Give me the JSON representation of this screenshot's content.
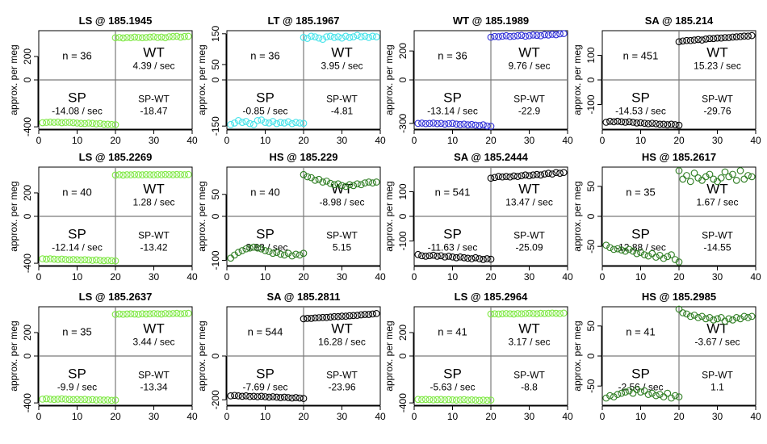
{
  "chart_data": [
    {
      "type": "scatter",
      "title": "LS @ 185.1945",
      "ylabel": "approx. per meg",
      "n_label": "n = 36",
      "color": "#7ee843",
      "xlim": [
        0,
        40
      ],
      "ylim": [
        -420,
        420
      ],
      "yticks": [
        -400,
        0,
        200
      ],
      "xticks": [
        0,
        10,
        20,
        30,
        40
      ],
      "sp": {
        "label": "SP",
        "rate": "-14.08 / sec",
        "values": [
          -365,
          -362,
          -360,
          -362,
          -360,
          -365,
          -362,
          -362,
          -365,
          -368,
          -370,
          -372,
          -368,
          -370,
          -375,
          -372,
          -378,
          -378,
          -380,
          -382
        ],
        "x0": 1
      },
      "wt": {
        "label": "WT",
        "rate": "4.39 / sec",
        "values": [
          360,
          362,
          358,
          362,
          360,
          365,
          362,
          360,
          362,
          365,
          368,
          362,
          365,
          360,
          368,
          370,
          372,
          365,
          370,
          372
        ],
        "x0": 20
      },
      "spwt": {
        "label": "SP-WT",
        "rate": "-18.47"
      }
    },
    {
      "type": "scatter",
      "title": "LT @ 185.1967",
      "ylabel": "approx. per meg",
      "n_label": "n = 36",
      "color": "#45e3ea",
      "xlim": [
        0,
        40
      ],
      "ylim": [
        -160,
        160
      ],
      "yticks": [
        -150,
        0,
        50,
        150
      ],
      "xticks": [
        0,
        10,
        20,
        30,
        40
      ],
      "sp": {
        "label": "SP",
        "rate": "-0.85 / sec",
        "values": [
          -145,
          -140,
          -132,
          -138,
          -135,
          -142,
          -145,
          -132,
          -130,
          -138,
          -140,
          -135,
          -142,
          -138,
          -140,
          -136,
          -142,
          -138,
          -140,
          -141
        ],
        "x0": 1
      },
      "wt": {
        "label": "WT",
        "rate": "3.95 / sec",
        "values": [
          138,
          135,
          142,
          140,
          136,
          132,
          140,
          142,
          138,
          140,
          136,
          142,
          138,
          140,
          145,
          140,
          142,
          138,
          142,
          140
        ],
        "x0": 20
      },
      "spwt": {
        "label": "SP-WT",
        "rate": "-4.81"
      }
    },
    {
      "type": "scatter",
      "title": "WT @ 185.1989",
      "ylabel": "approx. per meg",
      "n_label": "n = 36",
      "color": "#2d2dd6",
      "xlim": [
        0,
        40
      ],
      "ylim": [
        -340,
        340
      ],
      "yticks": [
        -300,
        0,
        200
      ],
      "xticks": [
        0,
        10,
        20,
        30,
        40
      ],
      "sp": {
        "label": "SP",
        "rate": "-13.14 / sec",
        "values": [
          -300,
          -298,
          -302,
          -300,
          -298,
          -302,
          -300,
          -305,
          -302,
          -300,
          -305,
          -308,
          -305,
          -310,
          -308,
          -312,
          -315,
          -310,
          -318,
          -320
        ],
        "x0": 1
      },
      "wt": {
        "label": "WT",
        "rate": "9.76 / sec",
        "values": [
          295,
          300,
          298,
          302,
          305,
          300,
          302,
          305,
          308,
          302,
          305,
          310,
          308,
          305,
          312,
          310,
          315,
          312,
          318,
          320
        ],
        "x0": 20
      },
      "spwt": {
        "label": "SP-WT",
        "rate": "-22.9"
      }
    },
    {
      "type": "scatter",
      "title": "SA @ 185.214",
      "ylabel": "approx. per meg",
      "n_label": "n = 451",
      "color": "#000000",
      "xlim": [
        0,
        40
      ],
      "ylim": [
        -200,
        200
      ],
      "yticks": [
        -100,
        0,
        100
      ],
      "xticks": [
        0,
        10,
        20,
        30,
        40
      ],
      "sp": {
        "label": "SP",
        "rate": "-14.53 / sec",
        "values": [
          -172,
          -168,
          -170,
          -168,
          -170,
          -172,
          -170,
          -172,
          -175,
          -174,
          -176,
          -178,
          -176,
          -178,
          -180,
          -180,
          -182,
          -180,
          -182,
          -184
        ],
        "x0": 1
      },
      "wt": {
        "label": "WT",
        "rate": "15.23 / sec",
        "values": [
          155,
          158,
          160,
          160,
          162,
          164,
          162,
          166,
          168,
          168,
          170,
          170,
          172,
          172,
          174,
          175,
          176,
          178,
          178,
          180
        ],
        "x0": 20
      },
      "spwt": {
        "label": "SP-WT",
        "rate": "-29.76"
      }
    },
    {
      "type": "scatter",
      "title": "LS @ 185.2269",
      "ylabel": "approx. per meg",
      "n_label": "n = 40",
      "color": "#7ee843",
      "xlim": [
        0,
        40
      ],
      "ylim": [
        -420,
        420
      ],
      "yticks": [
        -400,
        0,
        200
      ],
      "xticks": [
        0,
        10,
        20,
        30,
        40
      ],
      "sp": {
        "label": "SP",
        "rate": "-12.14 / sec",
        "values": [
          -362,
          -365,
          -362,
          -365,
          -368,
          -365,
          -368,
          -370,
          -368,
          -370,
          -372,
          -370,
          -372,
          -375,
          -372,
          -375,
          -378,
          -375,
          -378,
          -380
        ],
        "x0": 1
      },
      "wt": {
        "label": "WT",
        "rate": "1.28 / sec",
        "values": [
          352,
          355,
          352,
          355,
          354,
          356,
          355,
          354,
          356,
          355,
          354,
          356,
          355,
          357,
          356,
          355,
          357,
          356,
          355,
          357
        ],
        "x0": 20
      },
      "spwt": {
        "label": "SP-WT",
        "rate": "-13.42"
      }
    },
    {
      "type": "scatter",
      "title": "HS @ 185.229",
      "ylabel": "approx. per meg",
      "n_label": "n = 40",
      "color": "#2e7d22",
      "xlim": [
        0,
        40
      ],
      "ylim": [
        -112,
        112
      ],
      "yticks": [
        -100,
        0,
        50
      ],
      "xticks": [
        0,
        10,
        20,
        30,
        40
      ],
      "sp": {
        "label": "SP",
        "rate": "-3.83 / sec",
        "values": [
          -95,
          -88,
          -82,
          -78,
          -74,
          -72,
          -70,
          -72,
          -74,
          -78,
          -80,
          -84,
          -82,
          -86,
          -88,
          -84,
          -90,
          -86,
          -88,
          -84
        ],
        "x0": 1
      },
      "wt": {
        "label": "WT",
        "rate": "-8.98 / sec",
        "values": [
          95,
          90,
          88,
          82,
          84,
          78,
          80,
          75,
          72,
          74,
          70,
          68,
          72,
          70,
          74,
          72,
          76,
          78,
          76,
          78
        ],
        "x0": 20
      },
      "spwt": {
        "label": "SP-WT",
        "rate": "5.15"
      }
    },
    {
      "type": "scatter",
      "title": "SA @ 185.2444",
      "ylabel": "approx. per meg",
      "n_label": "n = 541",
      "color": "#000000",
      "xlim": [
        0,
        40
      ],
      "ylim": [
        -200,
        200
      ],
      "yticks": [
        -100,
        0,
        100
      ],
      "xticks": [
        0,
        10,
        20,
        30,
        40
      ],
      "sp": {
        "label": "SP",
        "rate": "-11.63 / sec",
        "values": [
          -155,
          -160,
          -162,
          -160,
          -158,
          -162,
          -160,
          -165,
          -162,
          -165,
          -168,
          -165,
          -168,
          -170,
          -172,
          -168,
          -172,
          -175,
          -172,
          -174
        ],
        "x0": 1
      },
      "wt": {
        "label": "WT",
        "rate": "13.47 / sec",
        "values": [
          155,
          158,
          162,
          160,
          162,
          160,
          164,
          162,
          165,
          168,
          165,
          168,
          170,
          168,
          172,
          175,
          172,
          178,
          175,
          178
        ],
        "x0": 20
      },
      "spwt": {
        "label": "SP-WT",
        "rate": "-25.09"
      }
    },
    {
      "type": "scatter",
      "title": "HS @ 185.2617",
      "ylabel": "approx. per meg",
      "n_label": "n = 35",
      "color": "#2e7d22",
      "xlim": [
        0,
        40
      ],
      "ylim": [
        -82,
        82
      ],
      "yticks": [
        -50,
        0,
        50
      ],
      "xticks": [
        0,
        10,
        20,
        30,
        40
      ],
      "sp": {
        "label": "SP",
        "rate": "-12.88 / sec",
        "values": [
          -48,
          -52,
          -55,
          -54,
          -56,
          -58,
          -55,
          -58,
          -62,
          -60,
          -64,
          -66,
          -62,
          -68,
          -65,
          -70,
          -67,
          -64,
          -72,
          -76
        ],
        "x0": 1
      },
      "wt": {
        "label": "WT",
        "rate": "1.67 / sec",
        "values": [
          76,
          62,
          68,
          58,
          72,
          64,
          60,
          66,
          70,
          62,
          58,
          64,
          74,
          66,
          70,
          60,
          76,
          62,
          68,
          66
        ],
        "x0": 20
      },
      "spwt": {
        "label": "SP-WT",
        "rate": "-14.55"
      }
    },
    {
      "type": "scatter",
      "title": "LS @ 185.2637",
      "ylabel": "approx. per meg",
      "n_label": "n = 35",
      "color": "#7ee843",
      "xlim": [
        0,
        40
      ],
      "ylim": [
        -420,
        420
      ],
      "yticks": [
        -400,
        0,
        200
      ],
      "xticks": [
        0,
        10,
        20,
        30,
        40
      ],
      "sp": {
        "label": "SP",
        "rate": "-9.9 / sec",
        "values": [
          -368,
          -365,
          -368,
          -370,
          -368,
          -366,
          -368,
          -370,
          -372,
          -370,
          -372,
          -370,
          -374,
          -372,
          -375,
          -374,
          -376,
          -375,
          -378,
          -376
        ],
        "x0": 1
      },
      "wt": {
        "label": "WT",
        "rate": "3.44 / sec",
        "values": [
          355,
          358,
          356,
          358,
          360,
          358,
          356,
          360,
          358,
          360,
          362,
          360,
          358,
          362,
          360,
          362,
          364,
          360,
          362,
          364
        ],
        "x0": 20
      },
      "spwt": {
        "label": "SP-WT",
        "rate": "-13.34"
      }
    },
    {
      "type": "scatter",
      "title": "SA @ 185.2811",
      "ylabel": "approx. per meg",
      "n_label": "n = 544",
      "color": "#000000",
      "xlim": [
        0,
        40
      ],
      "ylim": [
        -225,
        225
      ],
      "yticks": [
        -200,
        0
      ],
      "xticks": [
        0,
        10,
        20,
        30,
        40
      ],
      "sp": {
        "label": "SP",
        "rate": "-7.69 / sec",
        "values": [
          -182,
          -180,
          -182,
          -184,
          -182,
          -185,
          -184,
          -186,
          -184,
          -186,
          -188,
          -186,
          -188,
          -190,
          -188,
          -190,
          -192,
          -190,
          -192,
          -194
        ],
        "x0": 1
      },
      "wt": {
        "label": "WT",
        "rate": "16.28 / sec",
        "values": [
          170,
          172,
          172,
          174,
          175,
          176,
          176,
          178,
          180,
          180,
          182,
          182,
          184,
          185,
          186,
          188,
          190,
          190,
          192,
          194
        ],
        "x0": 20
      },
      "spwt": {
        "label": "SP-WT",
        "rate": "-23.96"
      }
    },
    {
      "type": "scatter",
      "title": "LS @ 185.2964",
      "ylabel": "approx. per meg",
      "n_label": "n = 41",
      "color": "#7ee843",
      "xlim": [
        0,
        40
      ],
      "ylim": [
        -420,
        420
      ],
      "yticks": [
        -400,
        0,
        200
      ],
      "xticks": [
        0,
        10,
        20,
        30,
        40
      ],
      "sp": {
        "label": "SP",
        "rate": "-5.63 / sec",
        "values": [
          -370,
          -372,
          -370,
          -372,
          -374,
          -372,
          -370,
          -374,
          -372,
          -374,
          -376,
          -374,
          -372,
          -376,
          -374,
          -376,
          -378,
          -376,
          -378,
          -376
        ],
        "x0": 1
      },
      "wt": {
        "label": "WT",
        "rate": "3.17 / sec",
        "values": [
          358,
          360,
          358,
          360,
          362,
          360,
          358,
          362,
          360,
          362,
          364,
          362,
          360,
          364,
          362,
          364,
          366,
          364,
          362,
          366
        ],
        "x0": 20
      },
      "spwt": {
        "label": "SP-WT",
        "rate": "-8.8"
      }
    },
    {
      "type": "scatter",
      "title": "HS @ 185.2985",
      "ylabel": "approx. per meg",
      "n_label": "n = 41",
      "color": "#2e7d22",
      "xlim": [
        0,
        40
      ],
      "ylim": [
        -82,
        82
      ],
      "yticks": [
        -50,
        0,
        50
      ],
      "xticks": [
        0,
        10,
        20,
        30,
        40
      ],
      "sp": {
        "label": "SP",
        "rate": "-2.56 / sec",
        "values": [
          -70,
          -66,
          -68,
          -64,
          -62,
          -60,
          -58,
          -62,
          -56,
          -60,
          -58,
          -64,
          -62,
          -66,
          -64,
          -68,
          -62,
          -70,
          -66,
          -68
        ],
        "x0": 1
      },
      "wt": {
        "label": "WT",
        "rate": "-3.67 / sec",
        "values": [
          78,
          72,
          70,
          66,
          68,
          64,
          66,
          62,
          64,
          60,
          62,
          64,
          58,
          62,
          60,
          64,
          62,
          66,
          64,
          66
        ],
        "x0": 20
      },
      "spwt": {
        "label": "SP-WT",
        "rate": "1.1"
      }
    }
  ]
}
